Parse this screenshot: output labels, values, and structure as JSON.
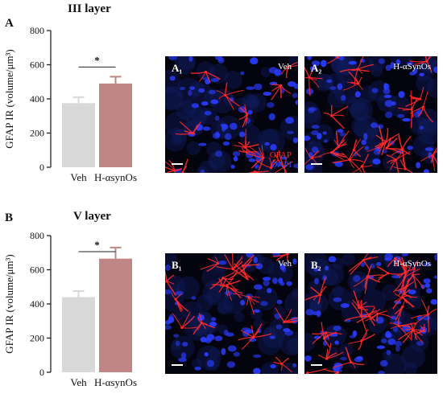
{
  "panels": [
    {
      "letter": "A",
      "title": "III layer",
      "micro": [
        {
          "label": "A₁",
          "condition": "Veh",
          "seed": 11
        },
        {
          "label": "A₂",
          "condition": "H-αSynOs",
          "seed": 23
        }
      ],
      "stain_legend": [
        "GFAP",
        "DAPI"
      ]
    },
    {
      "letter": "B",
      "title": "V layer",
      "micro": [
        {
          "label": "B₁",
          "condition": "Veh",
          "seed": 37
        },
        {
          "label": "B₂",
          "condition": "H-αSynOs",
          "seed": 53
        }
      ]
    }
  ],
  "colors": {
    "veh_bar": "#d8d8d8",
    "syn_bar": "#c08585",
    "gfap": "#ff2a2a",
    "dapi": "#2a3cff"
  },
  "chart_data": [
    {
      "type": "bar",
      "title": "III layer",
      "categories": [
        "Veh",
        "H-αsynOs"
      ],
      "values": [
        375,
        490
      ],
      "errors": [
        35,
        40
      ],
      "ylabel": "GFAP IR (volume/μm³)",
      "ylim": [
        0,
        800
      ],
      "yticks": [
        0,
        200,
        400,
        600,
        800
      ],
      "significance": "*"
    },
    {
      "type": "bar",
      "title": "V layer",
      "categories": [
        "Veh",
        "H-αsynOs"
      ],
      "values": [
        440,
        665
      ],
      "errors": [
        35,
        65
      ],
      "ylabel": "GFAP IR (volume/μm³)",
      "ylim": [
        0,
        800
      ],
      "yticks": [
        0,
        200,
        400,
        600,
        800
      ],
      "significance": "*"
    }
  ]
}
